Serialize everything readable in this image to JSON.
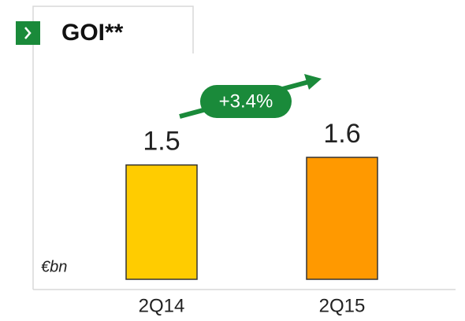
{
  "chart_data": {
    "type": "bar",
    "title": "GOI**",
    "y_label": "€bn",
    "annotation": "+3.4%",
    "categories": [
      "2Q14",
      "2Q15"
    ],
    "values": [
      1.5,
      1.6
    ],
    "colors": [
      "#FFCC00",
      "#FF9900"
    ]
  }
}
